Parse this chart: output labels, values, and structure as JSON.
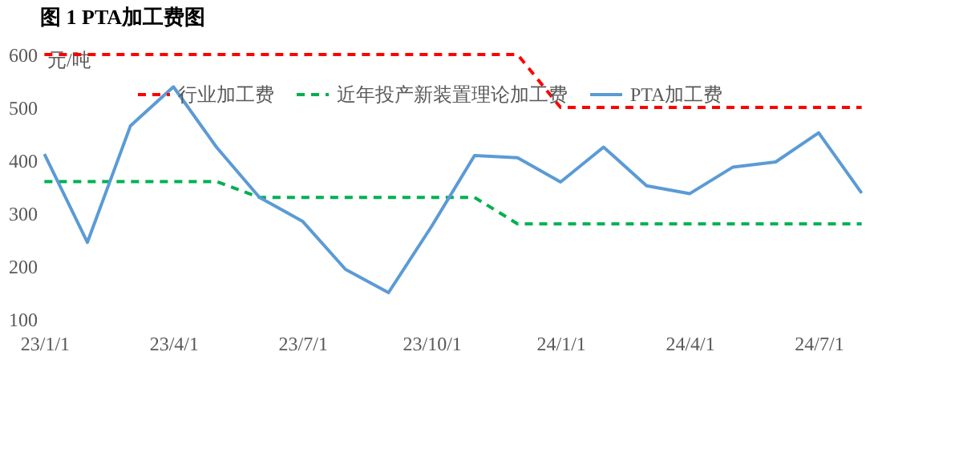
{
  "chart_data": {
    "type": "line",
    "title": "图 1 PTA加工费图",
    "ylabel": "元/吨",
    "categories": [
      "23/1/1",
      null,
      null,
      "23/4/1",
      null,
      null,
      "23/7/1",
      null,
      null,
      "23/10/1",
      null,
      null,
      "24/1/1",
      null,
      null,
      "24/4/1",
      null,
      null,
      "24/7/1",
      null
    ],
    "series": [
      {
        "name": "行业加工费",
        "color": "#ff0000",
        "line_style": "dashed",
        "values": [
          600,
          600,
          600,
          600,
          600,
          600,
          600,
          600,
          600,
          600,
          600,
          600,
          500,
          500,
          500,
          500,
          500,
          500,
          500,
          500
        ]
      },
      {
        "name": "近年投产新装置理论加工费",
        "color": "#00b050",
        "line_style": "dashed",
        "values": [
          360,
          360,
          360,
          360,
          360,
          330,
          330,
          330,
          330,
          330,
          330,
          280,
          280,
          280,
          280,
          280,
          280,
          280,
          280,
          280
        ]
      },
      {
        "name": "PTA加工费",
        "color": "#5b9bd5",
        "line_style": "solid",
        "values": [
          412,
          245,
          465,
          539,
          425,
          330,
          285,
          194,
          150,
          275,
          409,
          405,
          359,
          425,
          352,
          337,
          387,
          397,
          452,
          338
        ]
      }
    ],
    "ylim": [
      100,
      600
    ],
    "yticks": [
      100,
      200,
      300,
      400,
      500,
      600
    ],
    "grid": false,
    "legend": "top",
    "marker": "none"
  }
}
